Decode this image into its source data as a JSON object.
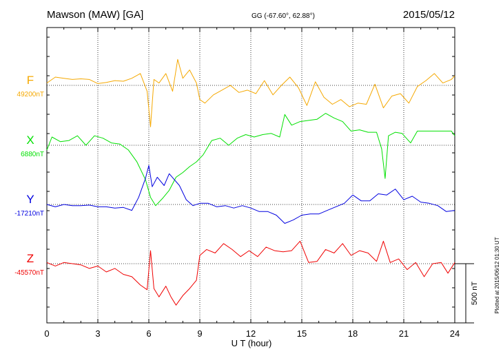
{
  "header": {
    "station": "Mawson (MAW)  [GA]",
    "coords": "GG (-67.60°,  62.88°)",
    "date": "2015/05/12"
  },
  "footer": {
    "plotted_note": "Plotted at 2015/06/12 01:30 UT",
    "scale_label": "500 nT"
  },
  "chart_data": {
    "type": "line",
    "title": "Mawson (MAW)  [GA]",
    "xlabel": "U T (hour)",
    "xlim": [
      0,
      24
    ],
    "xticks": [
      "0",
      "3",
      "6",
      "9",
      "12",
      "15",
      "18",
      "21",
      "24"
    ],
    "grid": true,
    "scale_nT": 500,
    "series": [
      {
        "name": "F",
        "baseline_label": "49200nT",
        "baseline": 49200,
        "color": "#f5a800",
        "x": [
          0,
          0.5,
          1.0,
          1.5,
          2.0,
          2.5,
          3.0,
          3.5,
          4.0,
          4.5,
          5.0,
          5.5,
          5.9,
          6.1,
          6.3,
          6.6,
          7.0,
          7.4,
          7.7,
          8.0,
          8.4,
          8.8,
          9.0,
          9.3,
          9.8,
          10.3,
          10.8,
          11.3,
          11.8,
          12.3,
          12.8,
          13.3,
          13.8,
          14.3,
          14.8,
          15.3,
          15.8,
          16.3,
          16.8,
          17.3,
          17.8,
          18.3,
          18.8,
          19.3,
          19.8,
          20.3,
          20.8,
          21.3,
          21.8,
          22.3,
          22.8,
          23.3,
          23.8,
          24.0
        ],
        "values": [
          49220,
          49270,
          49260,
          49250,
          49255,
          49250,
          49215,
          49225,
          49240,
          49235,
          49260,
          49300,
          49150,
          48850,
          49250,
          49220,
          49300,
          49150,
          49420,
          49260,
          49330,
          49220,
          49080,
          49050,
          49120,
          49160,
          49200,
          49140,
          49160,
          49130,
          49240,
          49120,
          49200,
          49270,
          49180,
          49030,
          49230,
          49100,
          49040,
          49080,
          49020,
          49050,
          49040,
          49210,
          49010,
          49110,
          49130,
          49050,
          49190,
          49240,
          49300,
          49220,
          49250,
          49280
        ]
      },
      {
        "name": "X",
        "baseline_label": "6880nT",
        "baseline": 6880,
        "color": "#00e000",
        "x": [
          0,
          0.3,
          0.8,
          1.3,
          1.8,
          2.3,
          2.8,
          3.3,
          3.8,
          4.3,
          4.8,
          5.3,
          5.8,
          6.1,
          6.4,
          6.8,
          7.2,
          7.6,
          8.0,
          8.4,
          8.8,
          9.2,
          9.7,
          10.2,
          10.7,
          11.2,
          11.7,
          12.2,
          12.7,
          13.2,
          13.7,
          14.0,
          14.4,
          14.9,
          15.4,
          15.9,
          16.4,
          16.9,
          17.4,
          17.9,
          18.4,
          18.9,
          19.4,
          19.7,
          19.9,
          20.1,
          20.5,
          20.9,
          21.4,
          21.8,
          22.3,
          22.8,
          23.3,
          23.8,
          24.0
        ],
        "values": [
          6840,
          6950,
          6910,
          6920,
          6960,
          6880,
          6960,
          6940,
          6900,
          6890,
          6840,
          6740,
          6590,
          6440,
          6370,
          6430,
          6500,
          6610,
          6650,
          6700,
          6740,
          6800,
          6920,
          6940,
          6880,
          6940,
          6970,
          6950,
          6970,
          6980,
          6950,
          7140,
          7050,
          7080,
          7090,
          7100,
          7150,
          7110,
          7080,
          7000,
          7010,
          6990,
          6990,
          6850,
          6600,
          6960,
          6990,
          6980,
          6900,
          7000,
          7000,
          7000,
          7000,
          7000,
          6960
        ]
      },
      {
        "name": "Y",
        "baseline_label": "-17210nT",
        "baseline": -17210,
        "color": "#0000e0",
        "x": [
          0,
          0.5,
          1.0,
          1.5,
          2.0,
          2.5,
          3.0,
          3.5,
          4.0,
          4.5,
          5.0,
          5.4,
          5.8,
          6.0,
          6.2,
          6.5,
          6.9,
          7.2,
          7.5,
          7.8,
          8.2,
          8.6,
          9.0,
          9.5,
          10.0,
          10.5,
          11.0,
          11.5,
          12.0,
          12.5,
          13.0,
          13.5,
          14.0,
          14.5,
          15.0,
          15.5,
          16.0,
          16.5,
          17.0,
          17.5,
          18.0,
          18.5,
          19.0,
          19.5,
          20.0,
          20.5,
          21.0,
          21.5,
          22.0,
          22.5,
          23.0,
          23.5,
          24.0
        ],
        "values": [
          -17210,
          -17230,
          -17210,
          -17220,
          -17220,
          -17215,
          -17230,
          -17230,
          -17240,
          -17235,
          -17260,
          -17150,
          -16990,
          -16880,
          -17060,
          -16980,
          -17050,
          -16950,
          -17000,
          -17050,
          -17170,
          -17220,
          -17200,
          -17200,
          -17230,
          -17220,
          -17240,
          -17220,
          -17240,
          -17270,
          -17270,
          -17300,
          -17370,
          -17340,
          -17300,
          -17290,
          -17290,
          -17260,
          -17230,
          -17200,
          -17130,
          -17180,
          -17180,
          -17120,
          -17130,
          -17080,
          -17170,
          -17140,
          -17190,
          -17200,
          -17220,
          -17270,
          -17260
        ]
      },
      {
        "name": "Z",
        "baseline_label": "-45570nT",
        "baseline": -45570,
        "color": "#f00000",
        "x": [
          0,
          0.5,
          1.0,
          1.5,
          2.0,
          2.5,
          3.0,
          3.5,
          4.0,
          4.5,
          5.0,
          5.5,
          5.9,
          6.1,
          6.3,
          6.6,
          7.0,
          7.3,
          7.6,
          8.0,
          8.4,
          8.8,
          9.0,
          9.4,
          9.9,
          10.4,
          10.9,
          11.4,
          11.9,
          12.4,
          12.9,
          13.4,
          13.9,
          14.4,
          14.9,
          15.4,
          15.9,
          16.4,
          16.9,
          17.4,
          17.9,
          18.4,
          18.9,
          19.4,
          19.8,
          20.2,
          20.7,
          21.2,
          21.7,
          22.2,
          22.7,
          23.2,
          23.6,
          24.0
        ],
        "values": [
          -45560,
          -45590,
          -45560,
          -45570,
          -45580,
          -45610,
          -45590,
          -45640,
          -45610,
          -45660,
          -45680,
          -45750,
          -45790,
          -45460,
          -45780,
          -45850,
          -45760,
          -45850,
          -45920,
          -45840,
          -45780,
          -45710,
          -45500,
          -45450,
          -45480,
          -45400,
          -45450,
          -45510,
          -45460,
          -45510,
          -45430,
          -45460,
          -45470,
          -45460,
          -45380,
          -45560,
          -45550,
          -45450,
          -45480,
          -45400,
          -45500,
          -45460,
          -45480,
          -45550,
          -45380,
          -45560,
          -45530,
          -45620,
          -45560,
          -45680,
          -45570,
          -45560,
          -45650,
          -45560
        ]
      }
    ]
  }
}
